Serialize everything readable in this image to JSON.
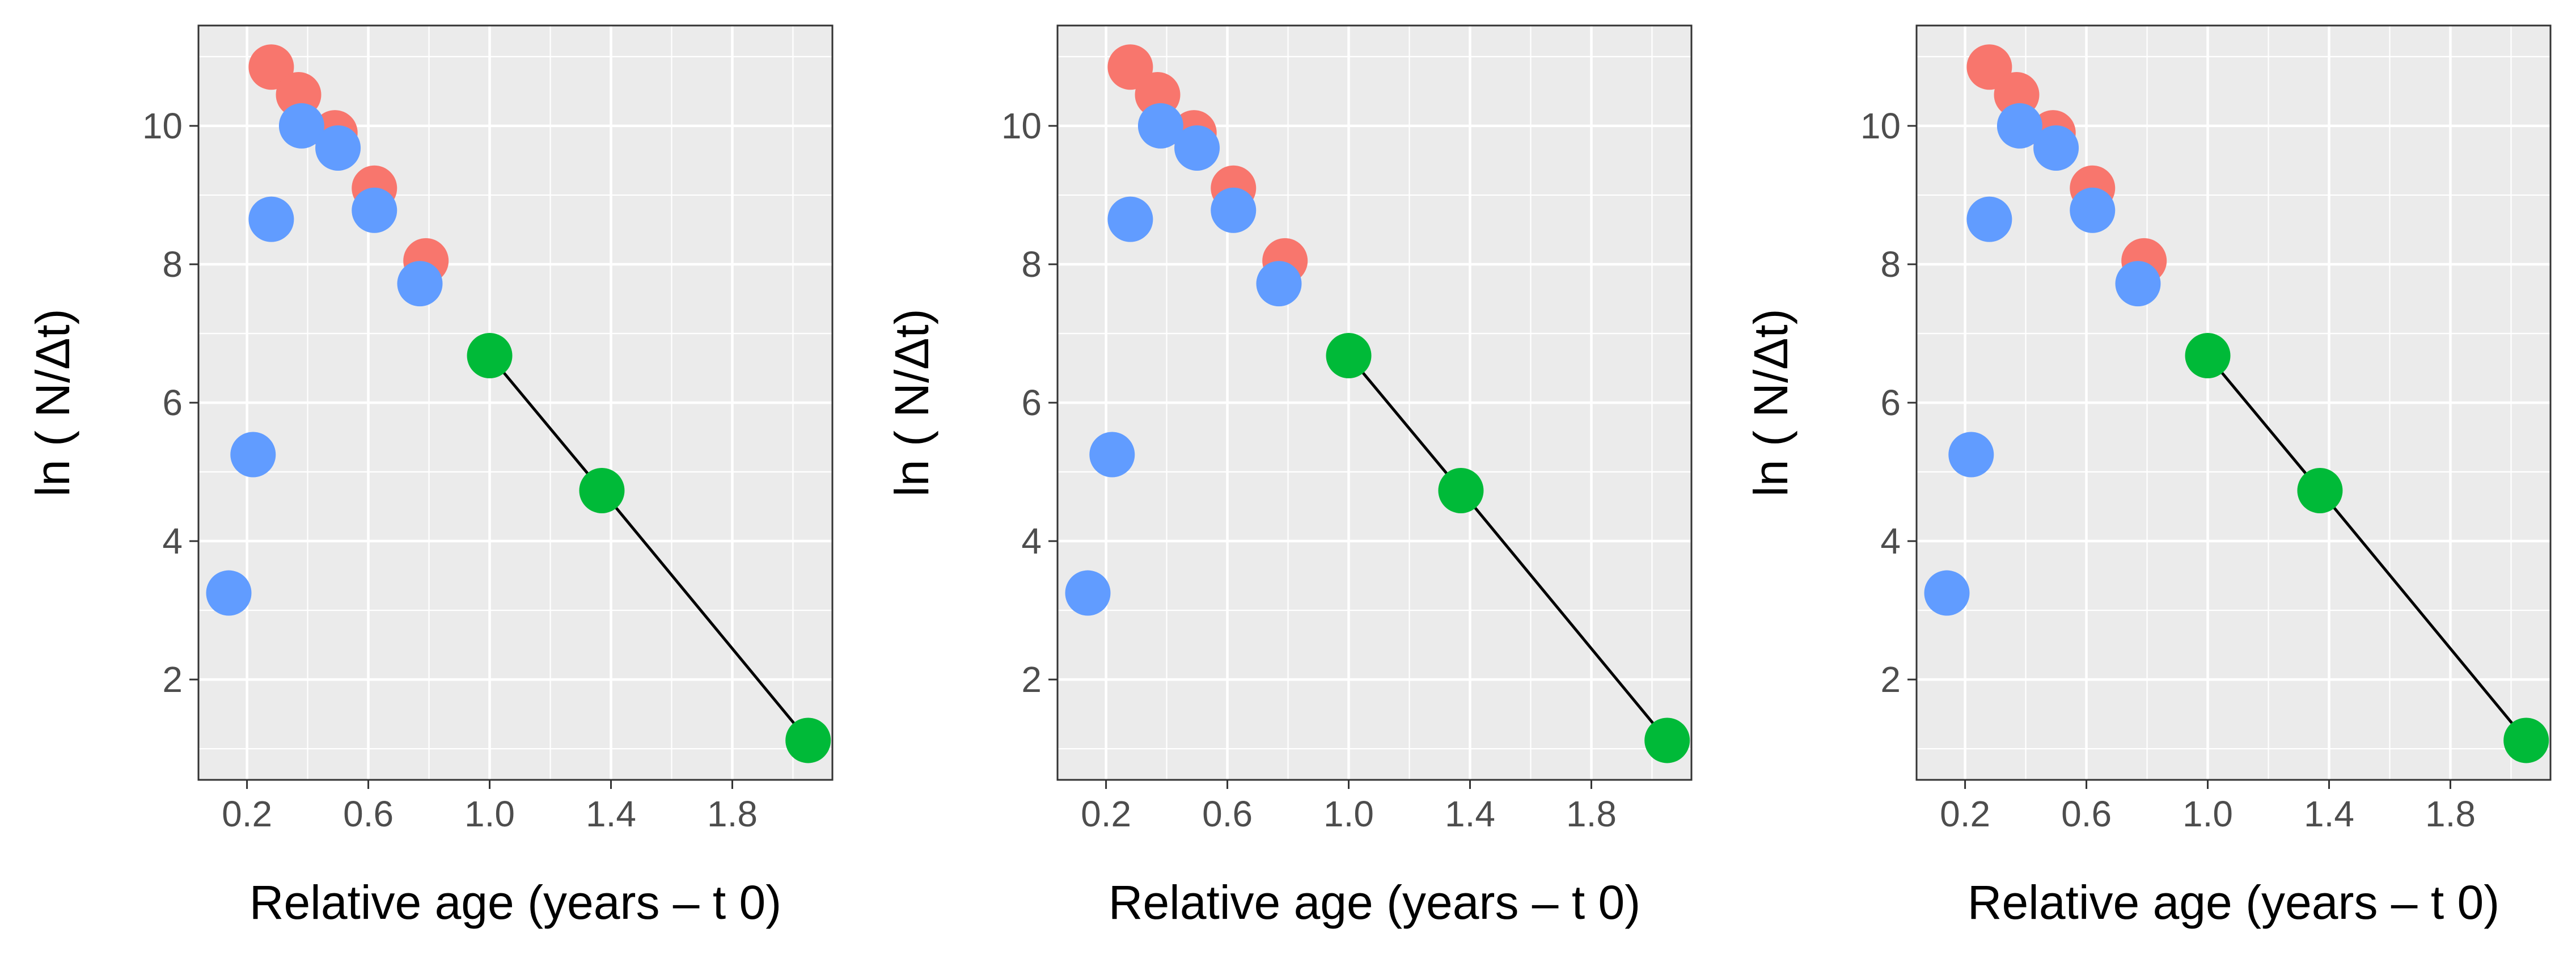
{
  "chart_data": [
    {
      "type": "scatter",
      "title": "",
      "xlabel": "Relative age (years – t 0)",
      "ylabel": "ln ( N/Δt)",
      "xlim": [
        0.04,
        2.13
      ],
      "ylim": [
        0.55,
        11.45
      ],
      "x_ticks": [
        0.2,
        0.6,
        1.0,
        1.4,
        1.8
      ],
      "x_tick_labels": [
        "0.2",
        "0.6",
        "1.0",
        "1.4",
        "1.8"
      ],
      "y_ticks": [
        2,
        4,
        6,
        8,
        10
      ],
      "y_tick_labels": [
        "2",
        "4",
        "6",
        "8",
        "10"
      ],
      "grid": true,
      "legend": "none",
      "series": [
        {
          "color": "#F8766D",
          "x": [
            0.28,
            0.37,
            0.49,
            0.62,
            0.79
          ],
          "y": [
            10.85,
            10.45,
            9.9,
            9.1,
            8.05
          ]
        },
        {
          "color": "#619CFF",
          "x": [
            0.14,
            0.22,
            0.28,
            0.38,
            0.5,
            0.62,
            0.77
          ],
          "y": [
            3.25,
            5.25,
            8.65,
            10.0,
            9.68,
            8.78,
            7.72
          ]
        },
        {
          "color": "#00BA38",
          "x": [
            1.0,
            1.37,
            2.05
          ],
          "y": [
            6.68,
            4.73,
            1.12
          ],
          "line": true
        }
      ]
    },
    {
      "type": "scatter",
      "title": "",
      "xlabel": "Relative age (years – t 0)",
      "ylabel": "ln ( N/Δt)",
      "xlim": [
        0.04,
        2.13
      ],
      "ylim": [
        0.55,
        11.45
      ],
      "x_ticks": [
        0.2,
        0.6,
        1.0,
        1.4,
        1.8
      ],
      "x_tick_labels": [
        "0.2",
        "0.6",
        "1.0",
        "1.4",
        "1.8"
      ],
      "y_ticks": [
        2,
        4,
        6,
        8,
        10
      ],
      "y_tick_labels": [
        "2",
        "4",
        "6",
        "8",
        "10"
      ],
      "grid": true,
      "legend": "none",
      "series": [
        {
          "color": "#F8766D",
          "x": [
            0.28,
            0.37,
            0.49,
            0.62,
            0.79
          ],
          "y": [
            10.85,
            10.45,
            9.9,
            9.1,
            8.05
          ]
        },
        {
          "color": "#619CFF",
          "x": [
            0.14,
            0.22,
            0.28,
            0.38,
            0.5,
            0.62,
            0.77
          ],
          "y": [
            3.25,
            5.25,
            8.65,
            10.0,
            9.68,
            8.78,
            7.72
          ]
        },
        {
          "color": "#00BA38",
          "x": [
            1.0,
            1.37,
            2.05
          ],
          "y": [
            6.68,
            4.73,
            1.12
          ],
          "line": true
        }
      ]
    },
    {
      "type": "scatter",
      "title": "",
      "xlabel": "Relative age (years – t 0)",
      "ylabel": "ln ( N/Δt)",
      "xlim": [
        0.04,
        2.13
      ],
      "ylim": [
        0.55,
        11.45
      ],
      "x_ticks": [
        0.2,
        0.6,
        1.0,
        1.4,
        1.8
      ],
      "x_tick_labels": [
        "0.2",
        "0.6",
        "1.0",
        "1.4",
        "1.8"
      ],
      "y_ticks": [
        2,
        4,
        6,
        8,
        10
      ],
      "y_tick_labels": [
        "2",
        "4",
        "6",
        "8",
        "10"
      ],
      "grid": true,
      "legend": "none",
      "series": [
        {
          "color": "#F8766D",
          "x": [
            0.28,
            0.37,
            0.49,
            0.62,
            0.79
          ],
          "y": [
            10.85,
            10.45,
            9.9,
            9.1,
            8.05
          ]
        },
        {
          "color": "#619CFF",
          "x": [
            0.14,
            0.22,
            0.28,
            0.38,
            0.5,
            0.62,
            0.77
          ],
          "y": [
            3.25,
            5.25,
            8.65,
            10.0,
            9.68,
            8.78,
            7.72
          ]
        },
        {
          "color": "#00BA38",
          "x": [
            1.0,
            1.37,
            2.05
          ],
          "y": [
            6.68,
            4.73,
            1.12
          ],
          "line": true
        }
      ]
    }
  ]
}
